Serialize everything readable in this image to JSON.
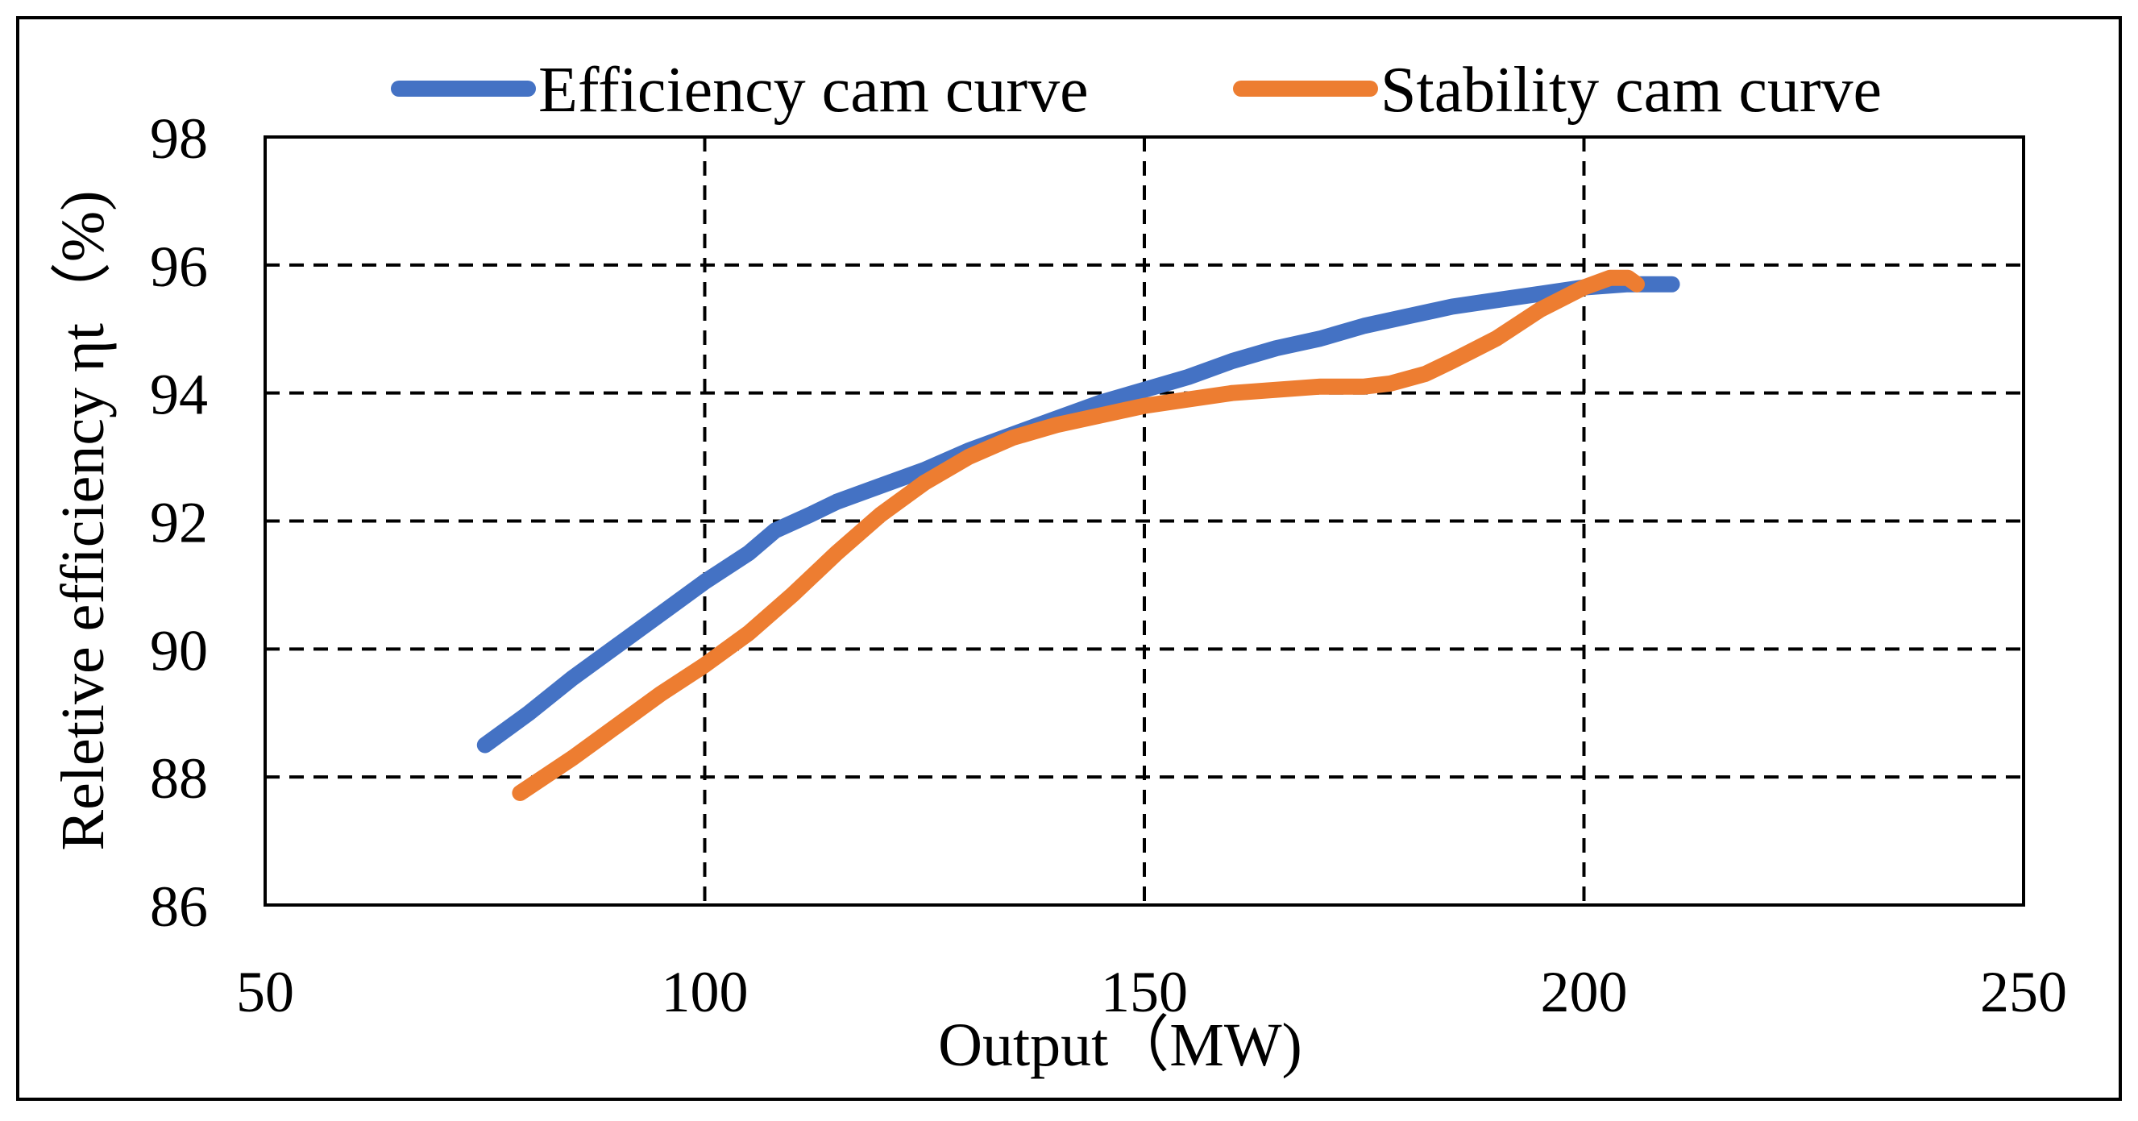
{
  "chart_data": {
    "type": "line",
    "title": "",
    "xlabel": "Output（MW)",
    "ylabel": "Reletive efficiency ηt（%)",
    "xlim": [
      50,
      250
    ],
    "ylim": [
      86,
      98
    ],
    "x_ticks": [
      50,
      100,
      150,
      200,
      250
    ],
    "y_ticks": [
      86,
      88,
      90,
      92,
      94,
      96,
      98
    ],
    "x_tick_labels": [
      "50",
      "100",
      "150",
      "200",
      "250"
    ],
    "y_tick_labels": [
      "86",
      "88",
      "90",
      "92",
      "94",
      "96",
      "98"
    ],
    "grid": true,
    "legend_position": "top",
    "series": [
      {
        "name": "Efficiency cam curve",
        "color": "#4472C4",
        "x": [
          75,
          80,
          85,
          90,
          95,
          100,
          105,
          108,
          112,
          115,
          120,
          125,
          130,
          135,
          140,
          145,
          150,
          155,
          160,
          165,
          170,
          175,
          180,
          185,
          190,
          195,
          200,
          205,
          210
        ],
        "y": [
          88.5,
          89.0,
          89.55,
          90.05,
          90.55,
          91.05,
          91.5,
          91.85,
          92.1,
          92.3,
          92.55,
          92.8,
          93.1,
          93.35,
          93.6,
          93.85,
          94.05,
          94.25,
          94.5,
          94.7,
          94.85,
          95.05,
          95.2,
          95.35,
          95.45,
          95.55,
          95.65,
          95.7,
          95.7
        ]
      },
      {
        "name": "Stability cam curve",
        "color": "#ED7D31",
        "x": [
          79,
          85,
          90,
          95,
          100,
          105,
          110,
          115,
          120,
          125,
          130,
          135,
          140,
          145,
          150,
          155,
          160,
          165,
          170,
          175,
          178,
          182,
          185,
          190,
          195,
          200,
          203,
          205,
          206
        ],
        "y": [
          87.75,
          88.3,
          88.8,
          89.3,
          89.75,
          90.25,
          90.85,
          91.5,
          92.1,
          92.6,
          93.0,
          93.3,
          93.5,
          93.65,
          93.8,
          93.9,
          94.0,
          94.05,
          94.1,
          94.1,
          94.15,
          94.3,
          94.5,
          94.85,
          95.3,
          95.65,
          95.8,
          95.8,
          95.7
        ]
      }
    ]
  }
}
